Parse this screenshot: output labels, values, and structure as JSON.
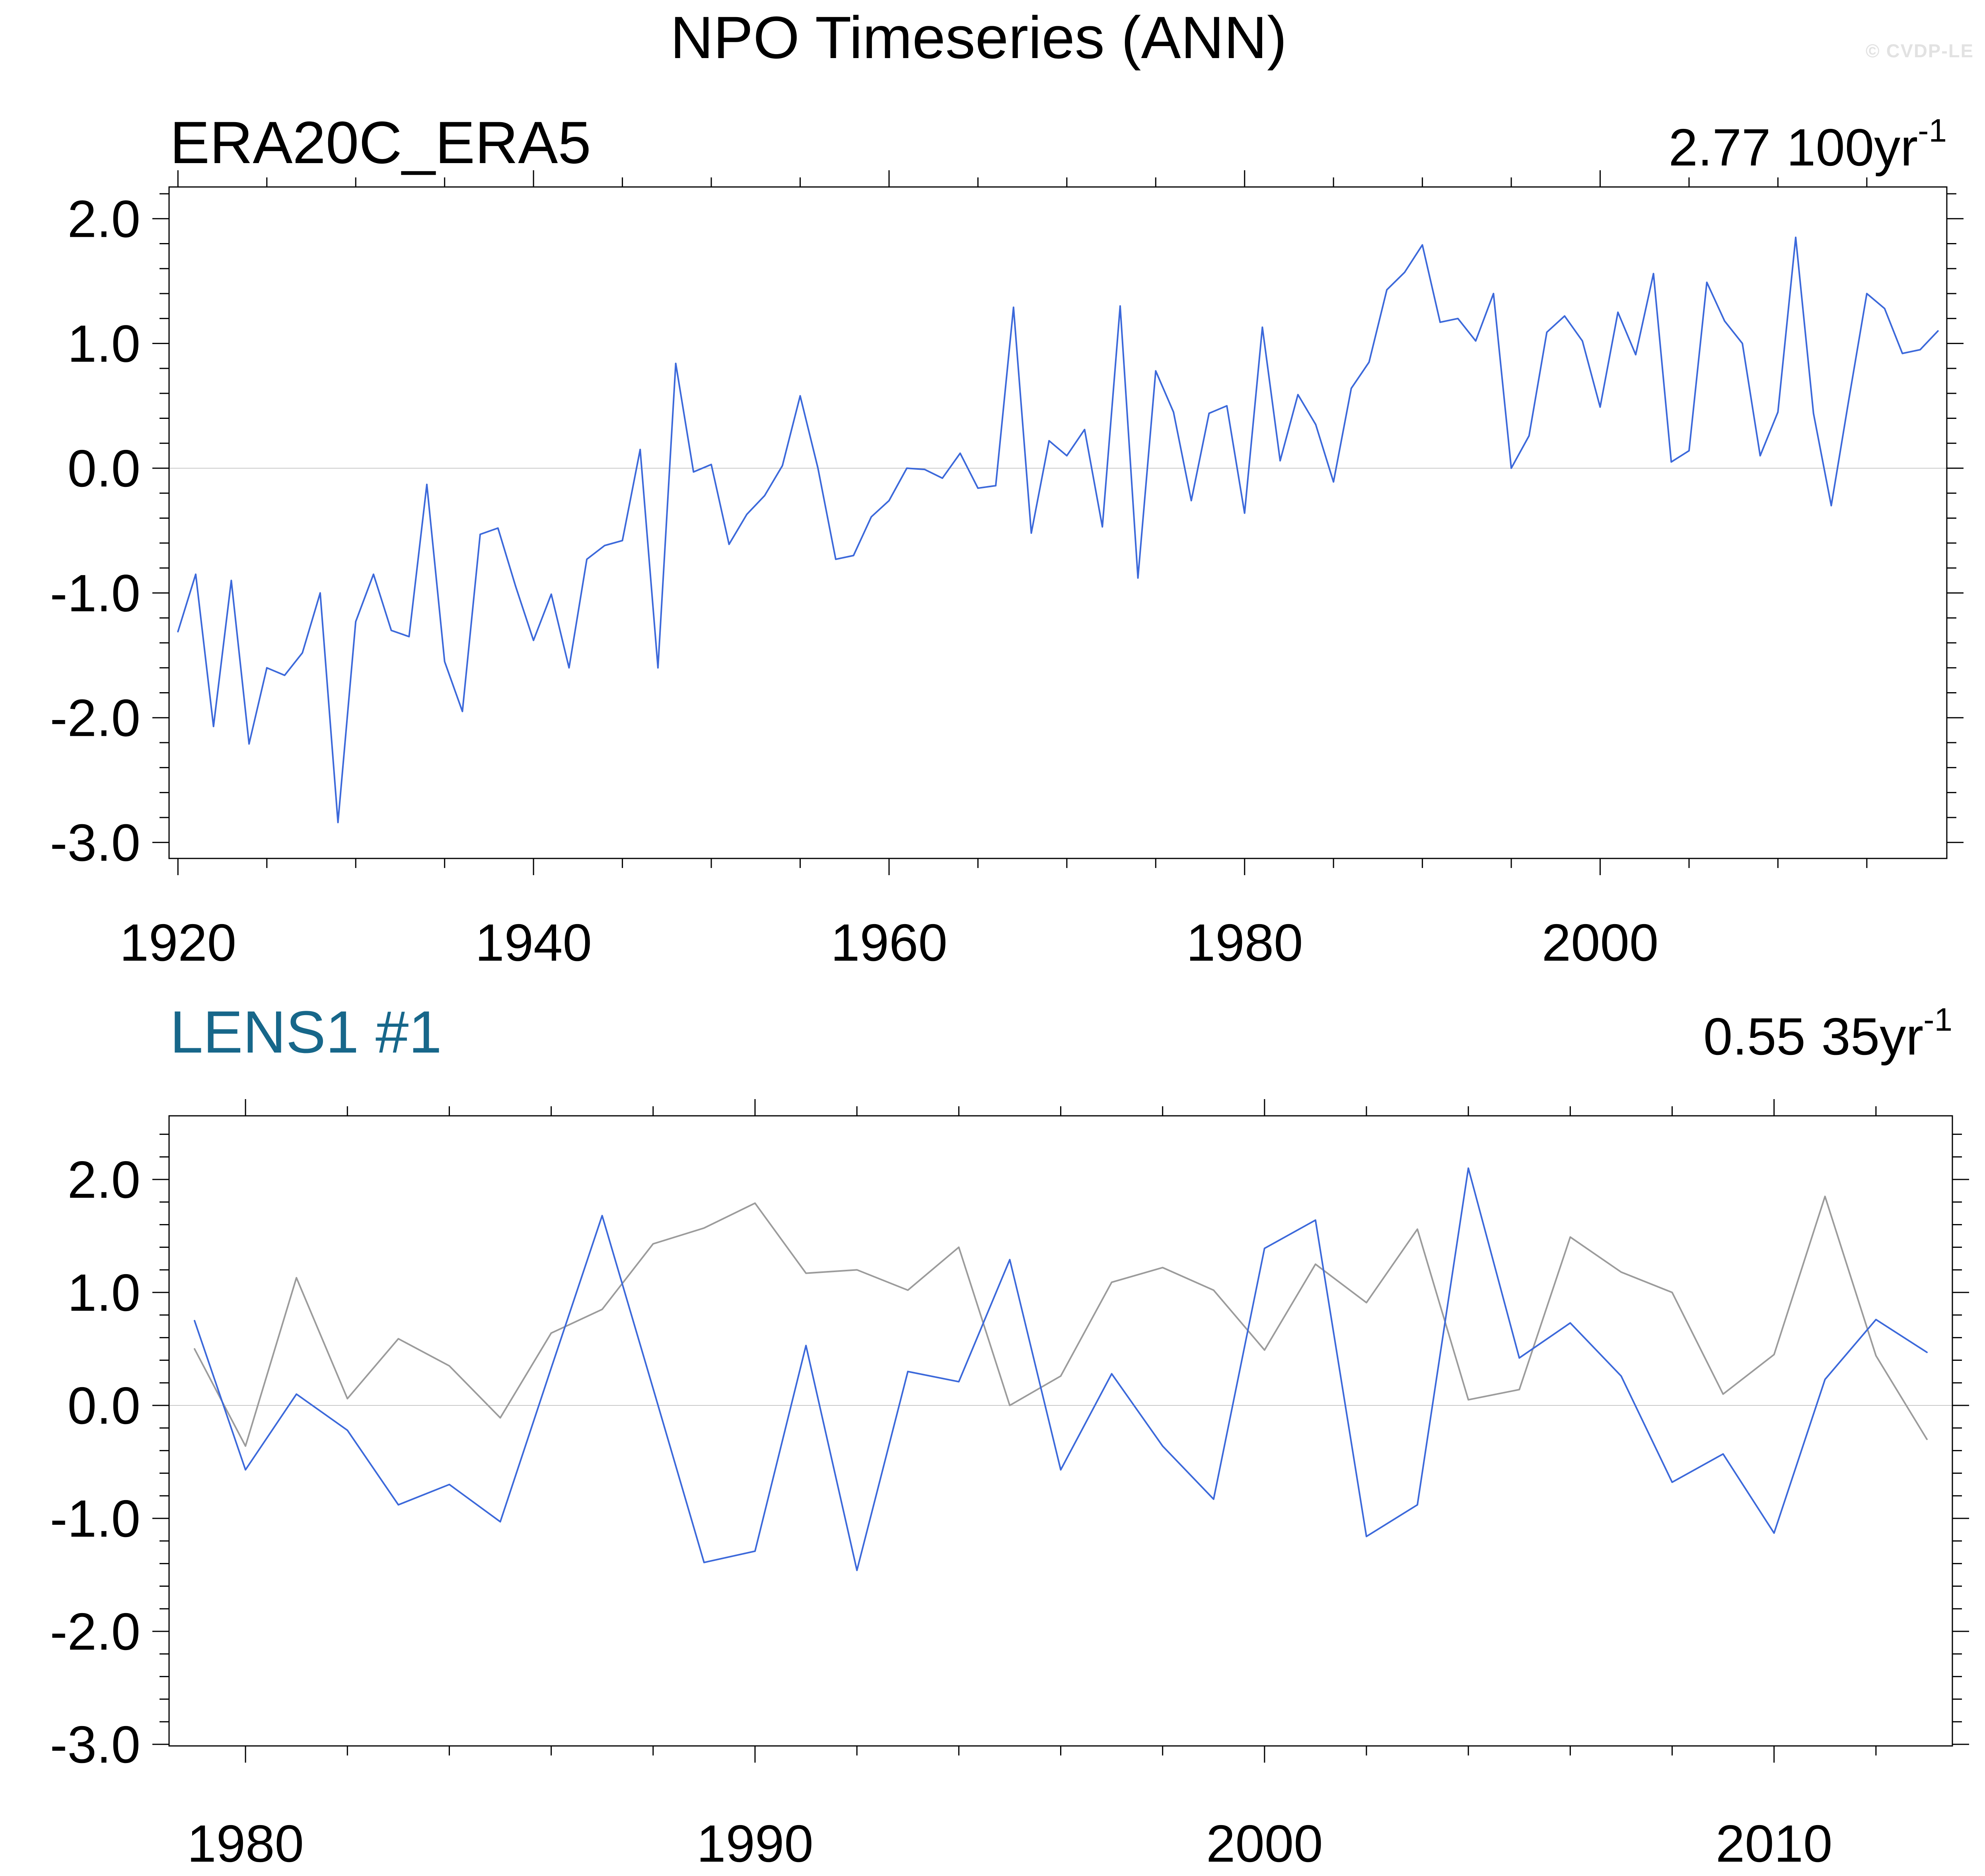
{
  "title": "NPO Timeseries (ANN)",
  "watermark": "© CVDP-LE",
  "colors": {
    "line_blue": "#3b68da",
    "line_gray": "#9b9b9b",
    "grid": "#c9c9c9",
    "axis": "#000000",
    "panel2_label": "#17678a",
    "watermark": "#e2e2e2"
  },
  "panels": [
    {
      "label": "ERA20C_ERA5",
      "trend_value": "2.77",
      "trend_unit": "100yr",
      "trend_exponent": "-1",
      "x_tick_labels": [
        "1920",
        "1940",
        "1960",
        "1980",
        "2000"
      ],
      "y_tick_labels": [
        "2.0",
        "1.0",
        "0.0",
        "-1.0",
        "-2.0",
        "-3.0"
      ]
    },
    {
      "label": "LENS1 #1",
      "trend_value": "0.55",
      "trend_unit": "35yr",
      "trend_exponent": "-1",
      "x_tick_labels": [
        "1980",
        "1990",
        "2000",
        "2010"
      ],
      "y_tick_labels": [
        "2.0",
        "1.0",
        "0.0",
        "-1.0",
        "-2.0",
        "-3.0"
      ]
    }
  ],
  "chart_data": [
    {
      "type": "line",
      "title": "ERA20C_ERA5",
      "trend_label": "2.77 100yr-1",
      "xlabel": "",
      "ylabel": "",
      "x_range": [
        1919.5,
        2019.5
      ],
      "y_axis_ticks": [
        2.0,
        1.0,
        0.0,
        -1.0,
        -2.0,
        -3.0
      ],
      "x_minor_step": 5,
      "y_minor_step": 0.2,
      "grid": "zero-line-only",
      "legend": "none",
      "series": [
        {
          "name": "ERA20C_ERA5",
          "color_key": "line_blue",
          "start_year": 1920,
          "values": [
            -1.31,
            -0.85,
            -2.07,
            -0.9,
            -2.21,
            -1.6,
            -1.66,
            -1.48,
            -1.0,
            -2.84,
            -1.23,
            -0.85,
            -1.3,
            -1.35,
            -0.13,
            -1.55,
            -1.95,
            -0.53,
            -0.48,
            -0.95,
            -1.38,
            -1.01,
            -1.6,
            -0.73,
            -0.62,
            -0.58,
            0.15,
            -1.6,
            0.84,
            -0.03,
            0.03,
            -0.61,
            -0.37,
            -0.22,
            0.02,
            0.58,
            0.0,
            -0.73,
            -0.7,
            -0.39,
            -0.26,
            0.0,
            -0.01,
            -0.08,
            0.12,
            -0.16,
            -0.14,
            1.29,
            -0.52,
            0.22,
            0.1,
            0.31,
            -0.47,
            1.3,
            -0.88,
            0.78,
            0.45,
            -0.26,
            0.44,
            0.5,
            -0.36,
            1.13,
            0.06,
            0.59,
            0.35,
            -0.11,
            0.64,
            0.85,
            1.43,
            1.57,
            1.79,
            1.17,
            1.2,
            1.02,
            1.4,
            0.0,
            0.26,
            1.09,
            1.22,
            1.02,
            0.49,
            1.25,
            0.91,
            1.56,
            0.05,
            0.14,
            1.49,
            1.18,
            1.0,
            0.1,
            0.45,
            1.85,
            0.44,
            -0.3,
            0.56,
            1.4,
            1.28,
            0.92,
            0.95,
            1.1
          ]
        }
      ]
    },
    {
      "type": "line",
      "title": "LENS1 #1",
      "trend_label": "0.55 35yr-1",
      "xlabel": "",
      "ylabel": "",
      "x_range": [
        1978.5,
        2013.5
      ],
      "y_axis_ticks": [
        2.0,
        1.0,
        0.0,
        -1.0,
        -2.0,
        -3.0
      ],
      "x_minor_step": 2,
      "y_minor_step": 0.2,
      "grid": "zero-line-only",
      "legend": "none",
      "series": [
        {
          "name": "ERA20C_ERA5 obs overlay",
          "color_key": "line_gray",
          "start_year": 1979,
          "values": [
            0.5,
            -0.36,
            1.13,
            0.06,
            0.59,
            0.35,
            -0.11,
            0.64,
            0.85,
            1.43,
            1.57,
            1.79,
            1.17,
            1.2,
            1.02,
            1.4,
            0.0,
            0.26,
            1.09,
            1.22,
            1.02,
            0.49,
            1.25,
            0.91,
            1.56,
            0.05,
            0.14,
            1.49,
            1.18,
            1.0,
            0.1,
            0.45,
            1.85,
            0.44,
            -0.3
          ]
        },
        {
          "name": "LENS1 member 1",
          "color_key": "line_blue",
          "start_year": 1979,
          "values": [
            0.75,
            -0.57,
            0.1,
            -0.22,
            -0.88,
            -0.7,
            -1.03,
            0.33,
            1.68,
            0.15,
            -1.39,
            -1.29,
            0.53,
            -1.46,
            0.3,
            0.21,
            1.29,
            -0.57,
            0.28,
            -0.36,
            -0.83,
            1.39,
            1.64,
            -1.16,
            -0.88,
            2.1,
            0.42,
            0.73,
            0.26,
            -0.68,
            -0.43,
            -1.13,
            0.23,
            0.76,
            0.47
          ]
        }
      ]
    }
  ]
}
